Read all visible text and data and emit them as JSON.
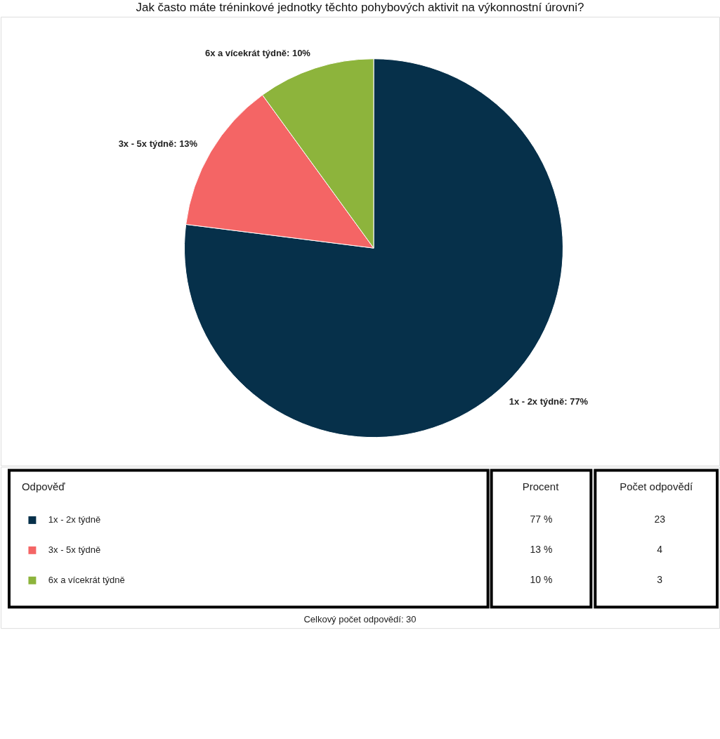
{
  "chart_data": {
    "type": "pie",
    "title": "Jak často máte tréninkové jednotky těchto pohybových aktivit na výkonnostní úrovni?",
    "categories": [
      "1x - 2x týdně",
      "3x - 5x týdně",
      "6x a vícekrát týdně"
    ],
    "values": [
      77,
      13,
      10
    ],
    "colors": [
      "#06304a",
      "#f46565",
      "#8db43c"
    ],
    "value_labels": [
      "1x - 2x týdně: 77%",
      "3x - 5x týdně: 13%",
      "6x a vícekrát týdně: 10%"
    ],
    "legend": "bottom",
    "annotations": [
      "Odpověď",
      "Procent",
      "Počet odpovědí",
      "77 %",
      "13 %",
      "10 %",
      "23",
      "4",
      "3",
      "Celkový počet odpovědí: 30"
    ]
  }
}
